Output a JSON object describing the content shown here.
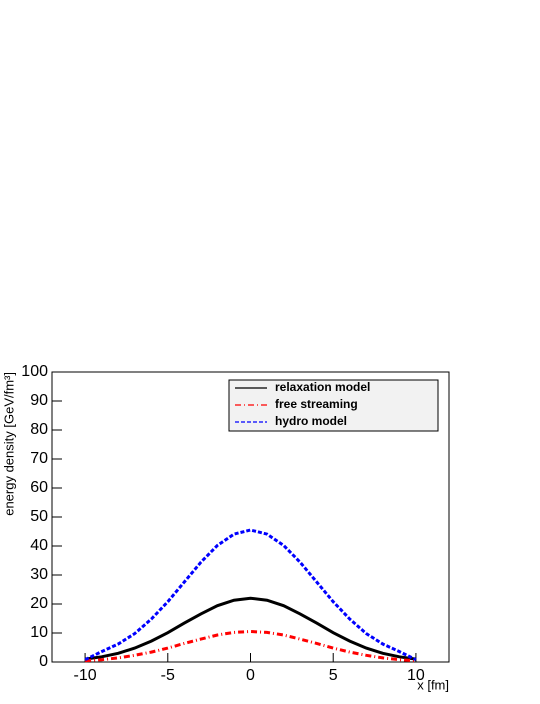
{
  "chart_data": {
    "type": "line",
    "x_label": "x [fm]",
    "y_label": "energy density [GeV/fm³]",
    "x": [
      -10,
      -9,
      -8,
      -7,
      -6,
      -5,
      -4,
      -3,
      -2,
      -1,
      0,
      1,
      2,
      3,
      4,
      5,
      6,
      7,
      8,
      9,
      10
    ],
    "series": [
      {
        "name": "relaxation model",
        "color": "#000000",
        "dash": "solid",
        "values": [
          1.0,
          1.8,
          3.0,
          4.8,
          7.2,
          10.1,
          13.4,
          16.6,
          19.4,
          21.3,
          22,
          21.3,
          19.4,
          16.6,
          13.4,
          10.1,
          7.2,
          4.8,
          3.0,
          1.8,
          1.0
        ]
      },
      {
        "name": "free streaming",
        "color": "#ff0000",
        "dash": "dashdot",
        "values": [
          0.4,
          0.8,
          1.4,
          2.3,
          3.4,
          4.8,
          6.4,
          7.9,
          9.3,
          10.2,
          10.5,
          10.2,
          9.3,
          7.9,
          6.4,
          4.8,
          3.4,
          2.3,
          1.4,
          0.8,
          0.4
        ]
      },
      {
        "name": "hydro model",
        "color": "#0000ff",
        "dash": "dashed",
        "values": [
          0.8,
          3.6,
          6.2,
          9.8,
          14.8,
          20.8,
          27.6,
          34.4,
          40.2,
          44.1,
          45.5,
          44.1,
          40.2,
          34.4,
          27.6,
          20.8,
          14.8,
          9.8,
          6.2,
          3.6,
          0.8
        ]
      }
    ],
    "xlim": [
      -12,
      12
    ],
    "xticks": [
      -10,
      -5,
      0,
      5,
      10
    ],
    "ylim": [
      0,
      100
    ],
    "yticks": [
      0,
      10,
      20,
      30,
      40,
      50,
      60,
      70,
      80,
      90,
      100
    ],
    "grid": false,
    "legend": "top-right"
  }
}
